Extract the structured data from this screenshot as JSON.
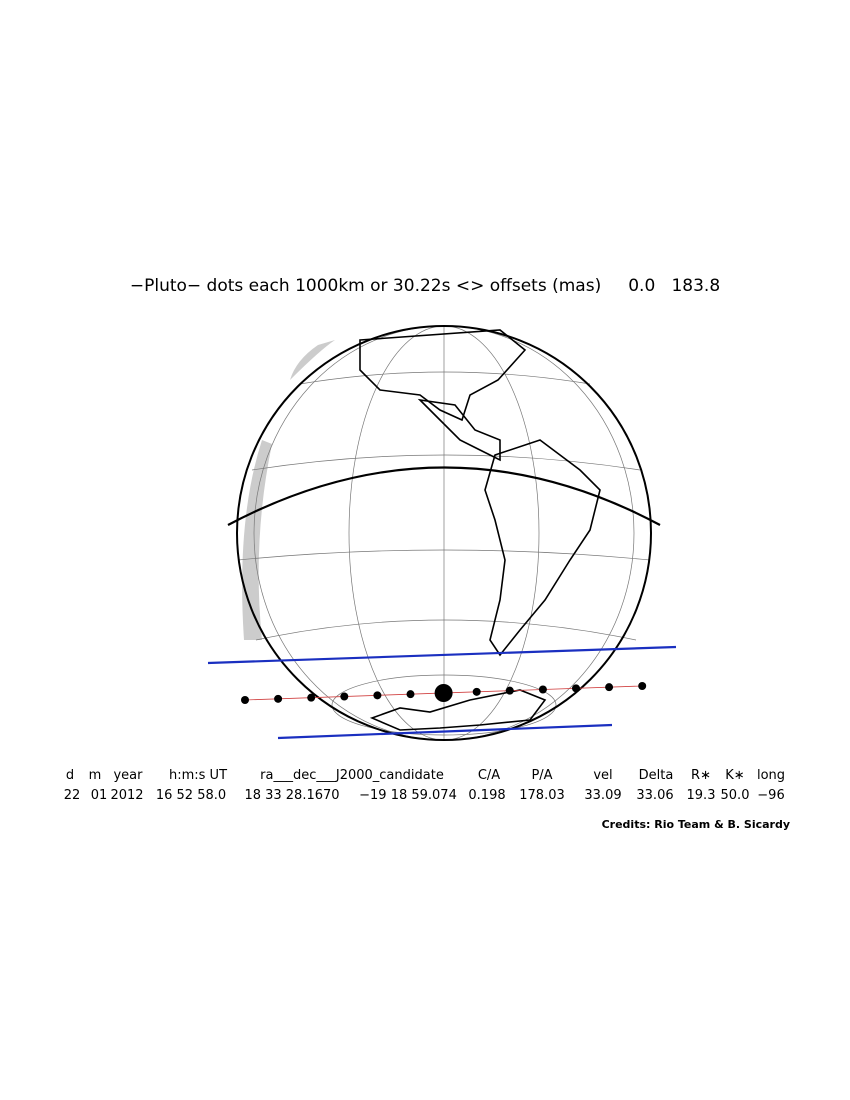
{
  "title": "−Pluto− dots each 1000km or 30.22s <> offsets (mas)     0.0   183.8",
  "table": {
    "headers": [
      "d",
      "m",
      "year",
      "h:m:s UT",
      "ra___dec___J2000_candidate",
      "C/A",
      "P/A",
      "vel",
      "Delta",
      "R∗",
      "K∗",
      "long"
    ],
    "values": [
      "22",
      "01",
      "2012",
      "16 52 58.0",
      "18 33 28.1670",
      "−19 18 59.074",
      "0.198",
      "178.03",
      "33.09",
      "33.06",
      "19.3",
      "50.0",
      "−96"
    ]
  },
  "credits": "Credits: Rio Team & B. Sicardy"
}
